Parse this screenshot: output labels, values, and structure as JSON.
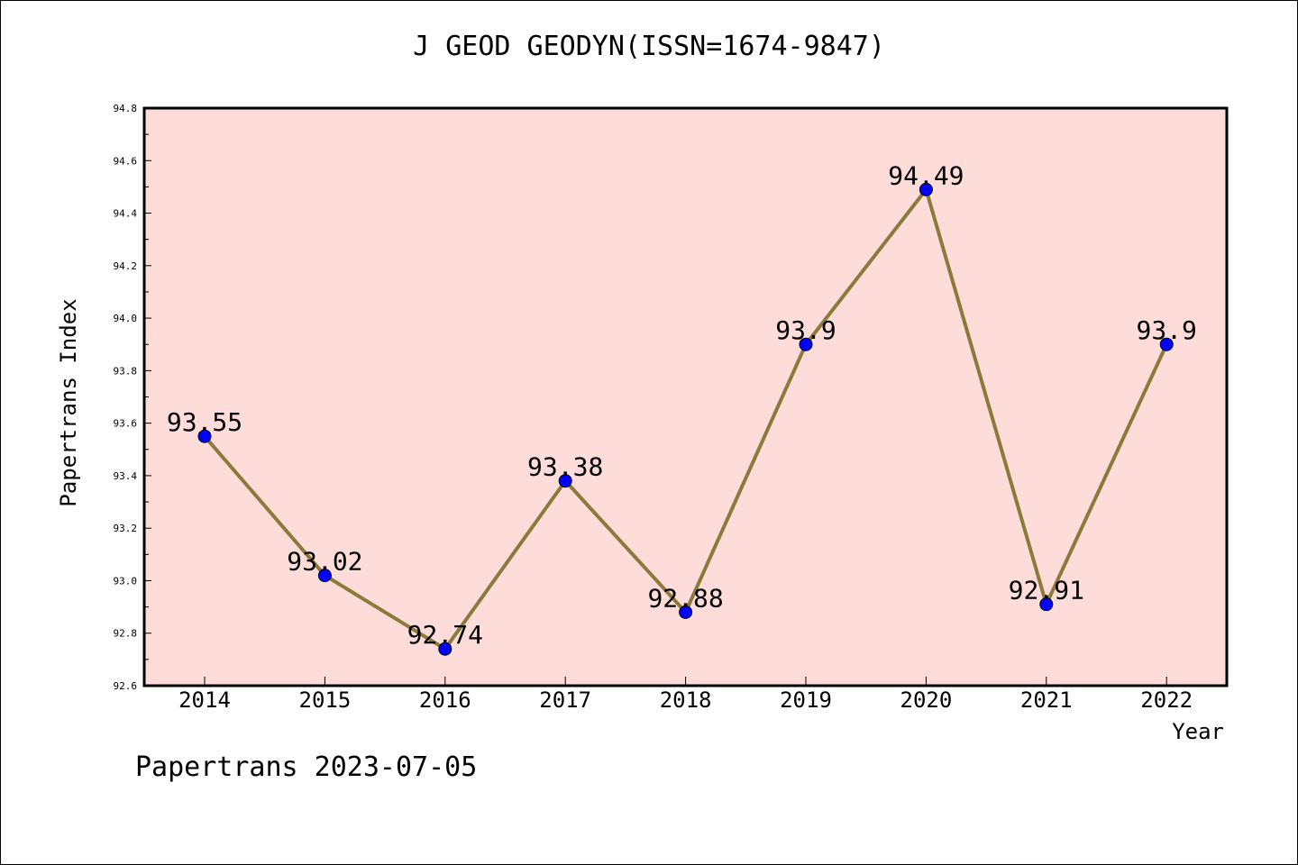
{
  "title": "J GEOD GEODYN(ISSN=1674-9847)",
  "footer": "Papertrans 2023-07-05",
  "chart_data": {
    "type": "line",
    "title": "J GEOD GEODYN(ISSN=1674-9847)",
    "xlabel": "Year",
    "ylabel": "Papertrans Index",
    "categories": [
      "2014",
      "2015",
      "2016",
      "2017",
      "2018",
      "2019",
      "2020",
      "2021",
      "2022"
    ],
    "values": [
      93.55,
      93.02,
      92.74,
      93.38,
      92.88,
      93.9,
      94.49,
      92.91,
      93.9
    ],
    "data_labels": [
      "93.55",
      "93.02",
      "92.74",
      "93.38",
      "92.88",
      "93.9",
      "94.49",
      "92.91",
      "93.9"
    ],
    "ylim": [
      92.6,
      94.8
    ],
    "yticks": [
      "92.6",
      "92.8",
      "93.0",
      "93.2",
      "93.4",
      "93.6",
      "93.8",
      "94.0",
      "94.2",
      "94.4",
      "94.6",
      "94.8"
    ],
    "grid": false,
    "legend": "none",
    "colors": {
      "plot_background": "#fddcd9",
      "line": "#8c7a3a",
      "marker": "#0000ff"
    }
  }
}
